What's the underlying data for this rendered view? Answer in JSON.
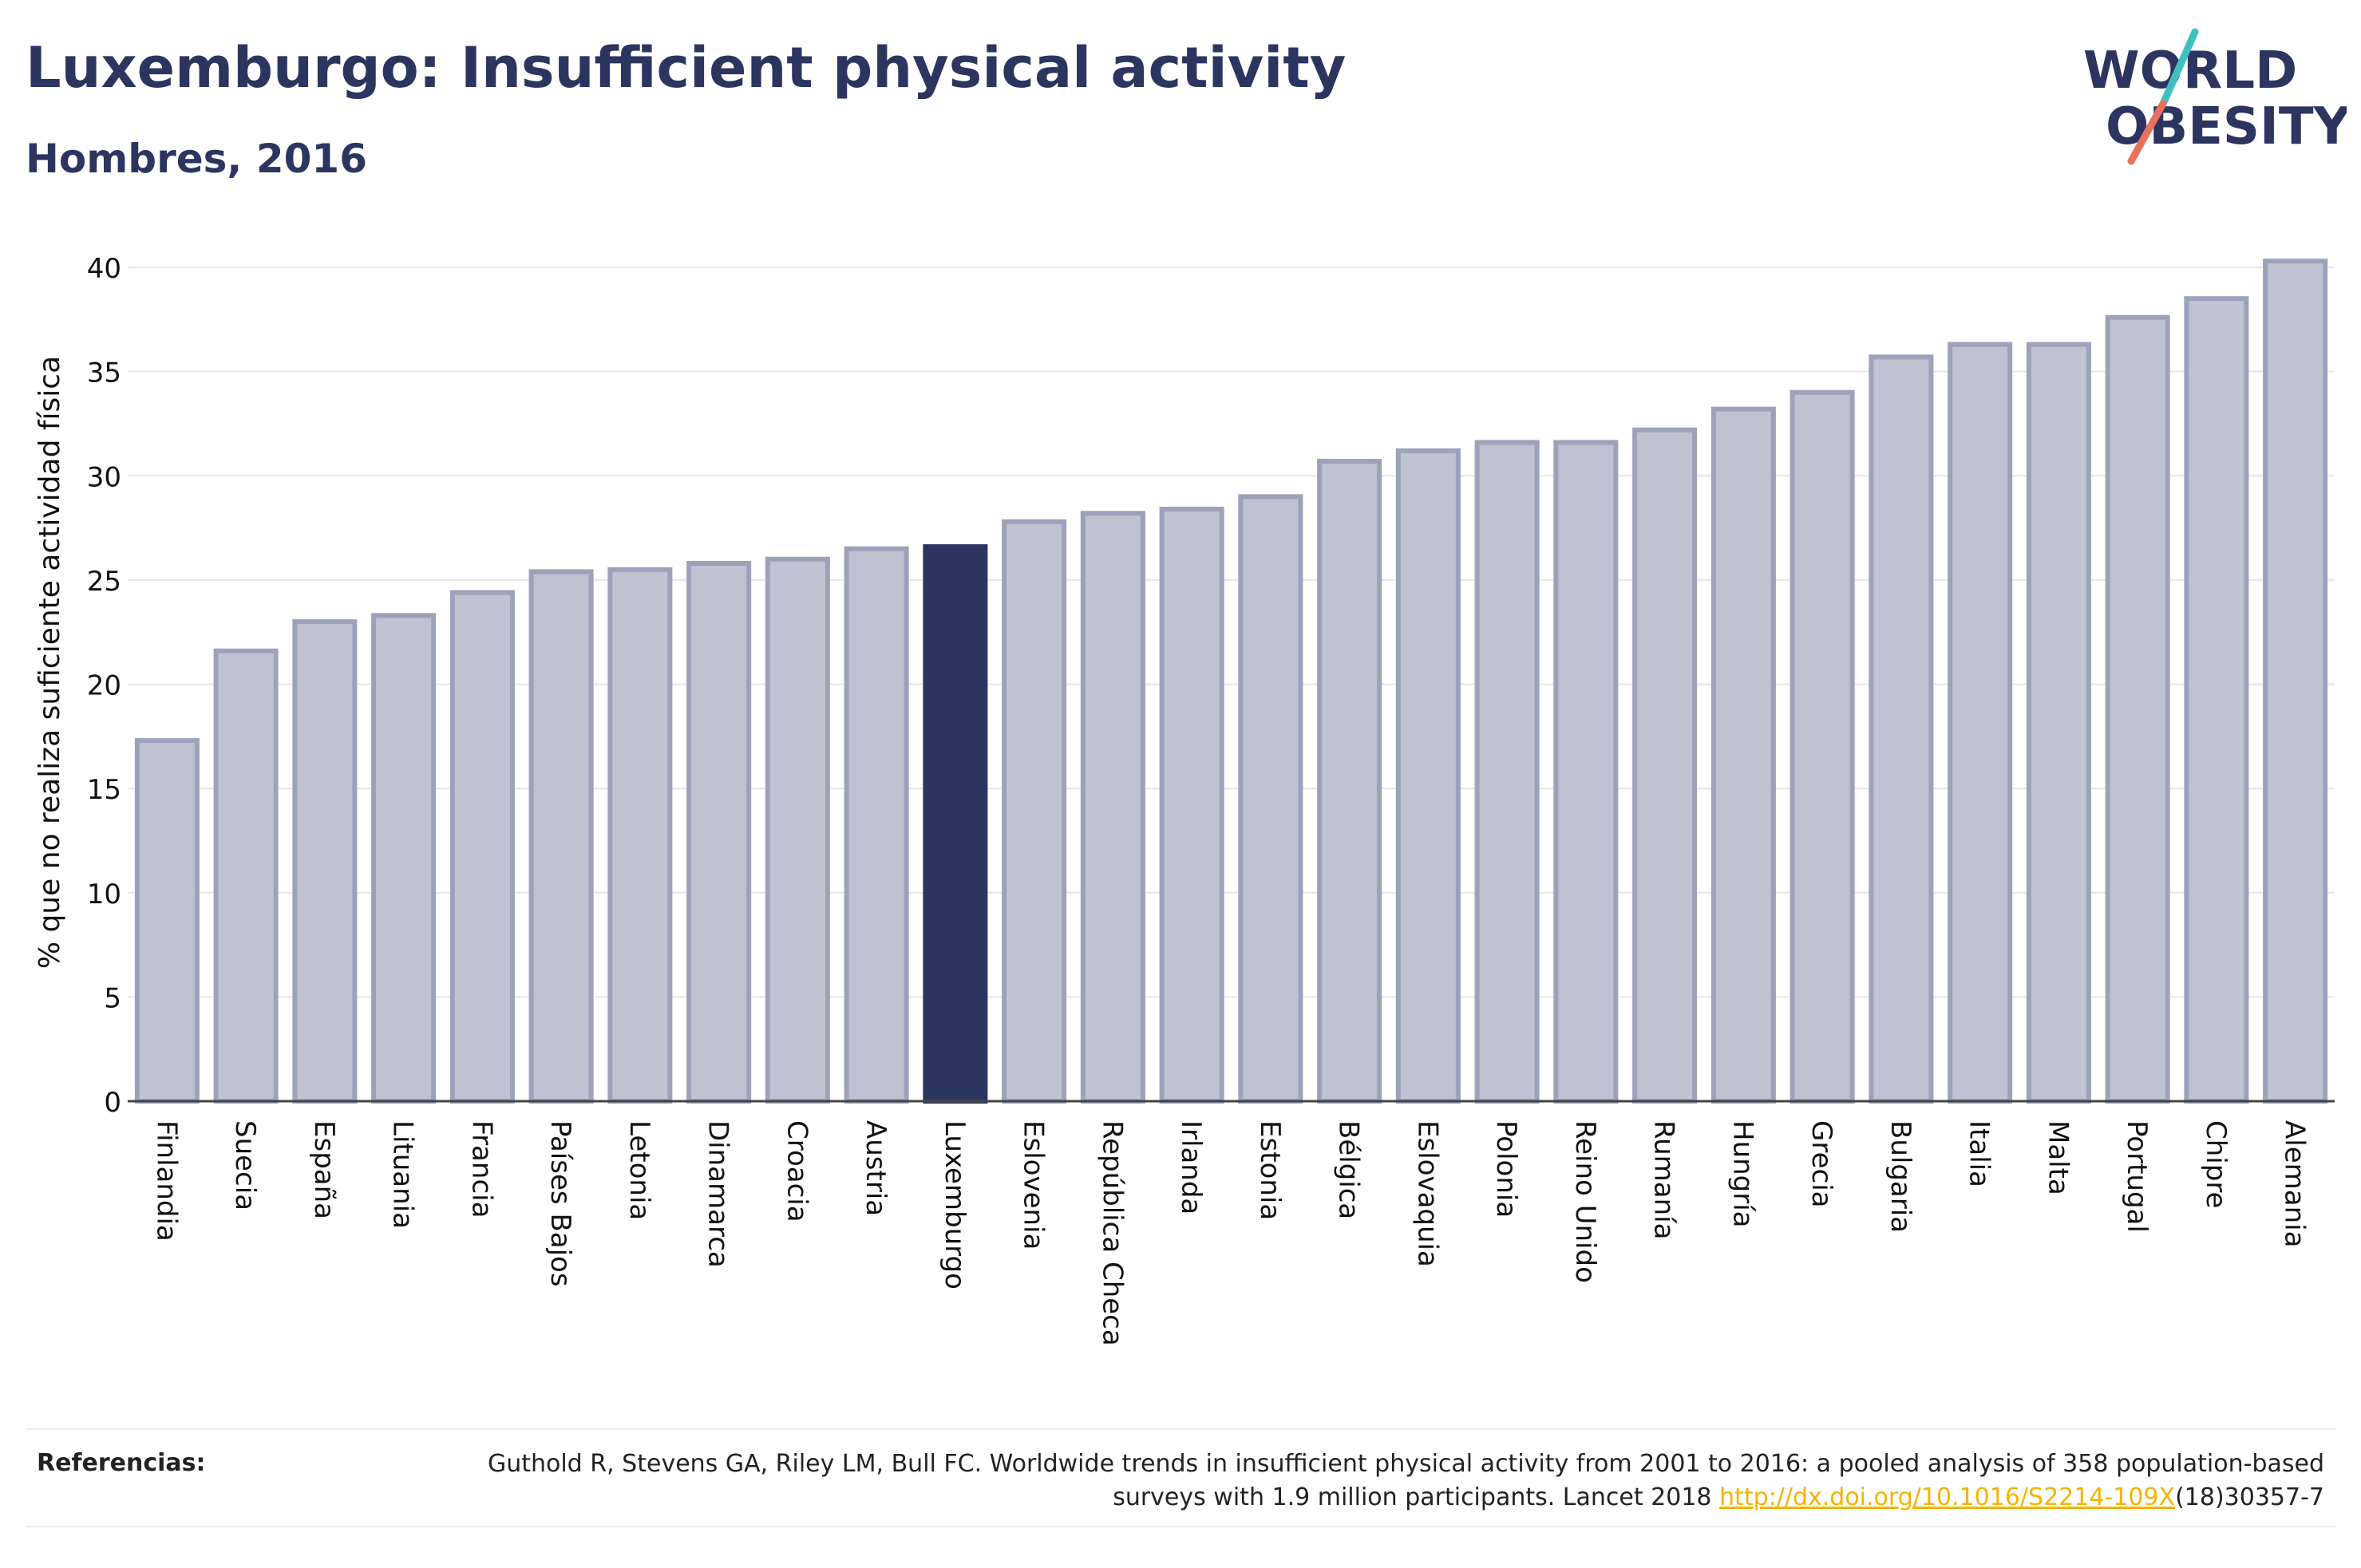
{
  "header": {
    "title": "Luxemburgo: Insufficient physical activity",
    "subtitle": "Hombres, 2016"
  },
  "logo": {
    "line1": "WORLD",
    "line2": "OBESITY",
    "colors": {
      "text": "#2b3560",
      "accent_teal": "#3fbfbf",
      "accent_coral": "#e8705c"
    }
  },
  "chart_data": {
    "type": "bar",
    "ylabel": "% que no realiza suficiente actividad física",
    "xlabel": "",
    "ylim": [
      0,
      40
    ],
    "yticks": [
      0,
      5,
      10,
      15,
      20,
      25,
      30,
      35,
      40
    ],
    "grid": true,
    "highlight": "Luxemburgo",
    "colors": {
      "bar": "#bfc2d0",
      "bar_border": "#9da2bb",
      "highlight": "#2b3560",
      "grid": "#e6e6ea"
    },
    "categories": [
      "Finlandia",
      "Suecia",
      "España",
      "Lituania",
      "Francia",
      "Países Bajos",
      "Letonia",
      "Dinamarca",
      "Croacia",
      "Austria",
      "Luxemburgo",
      "Eslovenia",
      "República Checa",
      "Irlanda",
      "Estonia",
      "Bélgica",
      "Eslovaquia",
      "Polonia",
      "Reino Unido",
      "Rumanía",
      "Hungría",
      "Grecia",
      "Bulgaria",
      "Italia",
      "Malta",
      "Portugal",
      "Chipre",
      "Alemania"
    ],
    "values": [
      17.3,
      21.6,
      23.0,
      23.3,
      24.4,
      25.4,
      25.5,
      25.8,
      26.0,
      26.5,
      26.6,
      27.8,
      28.2,
      28.4,
      29.0,
      30.7,
      31.2,
      31.6,
      31.6,
      32.2,
      33.2,
      34.0,
      35.7,
      36.3,
      36.3,
      37.6,
      38.5,
      40.3
    ]
  },
  "references": {
    "label": "Referencias:",
    "text_before": "Guthold R, Stevens GA, Riley LM, Bull FC. Worldwide trends in insufficient physical activity from 2001 to 2016: a pooled analysis of 358 population-based surveys with 1.9 million participants. Lancet 2018 ",
    "link": "http://dx.doi.org/10.1016/S2214-109X",
    "text_after": "(18)30357-7"
  }
}
